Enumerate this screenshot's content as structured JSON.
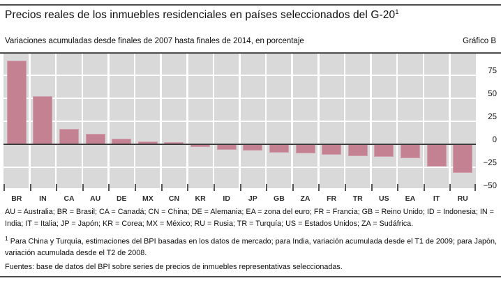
{
  "header": {
    "title": "Precios reales de los inmuebles residenciales en países seleccionados del G-20",
    "title_footnote_marker": "1",
    "subtitle": "Variaciones acumuladas desde finales de 2007 hasta finales de 2014, en porcentaje",
    "chart_label": "Gráfico B"
  },
  "chart_data": {
    "type": "bar",
    "categories": [
      "BR",
      "IN",
      "CA",
      "AU",
      "DE",
      "MX",
      "CN",
      "KR",
      "ID",
      "JP",
      "GB",
      "ZA",
      "FR",
      "TR",
      "US",
      "EA",
      "IT",
      "RU"
    ],
    "values": [
      91,
      52,
      17,
      11,
      6,
      3,
      2,
      -3,
      -6,
      -7,
      -9,
      -10,
      -11,
      -13,
      -14,
      -15,
      -24,
      -31
    ],
    "title": "Precios reales de los inmuebles residenciales en países seleccionados del G-20",
    "xlabel": "",
    "ylabel": "en porcentaje",
    "y_ticks": [
      75,
      50,
      25,
      0,
      -25,
      -50
    ],
    "ylim": [
      -48,
      98
    ],
    "grid": true,
    "legend_position": "none",
    "bar_color": "#c48191",
    "plot_background": "#d9d9d9"
  },
  "footer": {
    "legend": "AU = Australia; BR = Brasil; CA = Canadá; CN = China; DE = Alemania; EA = zona del euro; FR = Francia; GB = Reino Unido; ID = Indonesia; IN = India; IT = Italia; JP = Japón; KR = Corea; MX = México; RU = Rusia; TR = Turquía; US = Estados Unidos; ZA = Sudáfrica.",
    "footnote_marker": "1",
    "footnote": " Para China y Turquía, estimaciones del BPI basadas en los datos de mercado; para India, variación acumulada desde el T1 de 2009; para Japón, variación acumulada desde el T2 de 2008.",
    "sources": "Fuentes: base de datos del BPI sobre series de precios de inmuebles representativas seleccionadas."
  }
}
